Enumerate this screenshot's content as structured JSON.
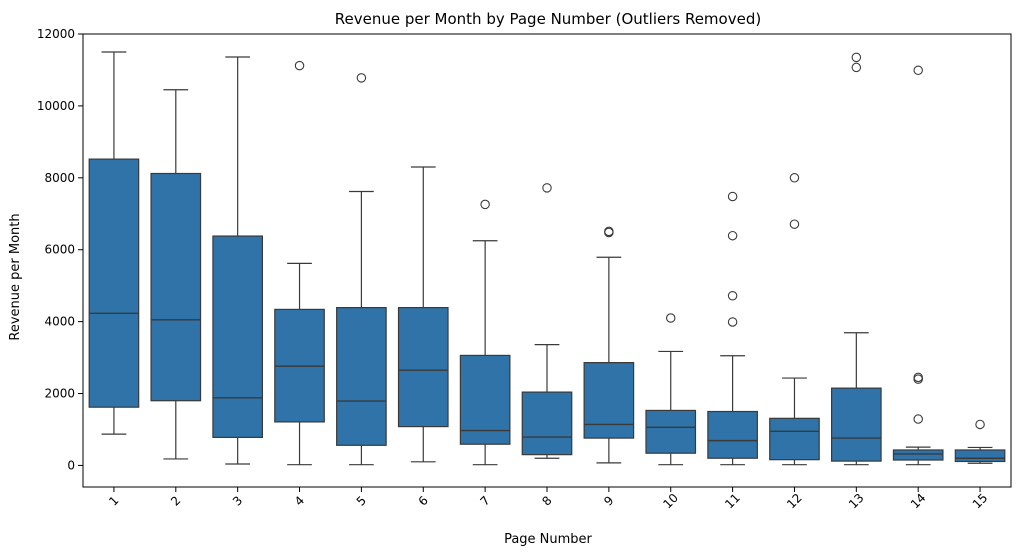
{
  "chart_data": {
    "type": "box",
    "title": "Revenue per Month by Page Number (Outliers Removed)",
    "xlabel": "Page Number",
    "ylabel": "Revenue per Month",
    "ylim": [
      -600,
      12000
    ],
    "yticks": [
      0,
      2000,
      4000,
      6000,
      8000,
      10000,
      12000
    ],
    "color": "#2f73a8",
    "grid": false,
    "categories": [
      "1",
      "2",
      "3",
      "4",
      "5",
      "6",
      "7",
      "8",
      "9",
      "10",
      "11",
      "12",
      "13",
      "14",
      "15"
    ],
    "boxes": [
      {
        "whisker_low": 870,
        "q1": 1620,
        "median": 4230,
        "q3": 8520,
        "whisker_high": 11500,
        "outliers": []
      },
      {
        "whisker_low": 180,
        "q1": 1800,
        "median": 4050,
        "q3": 8120,
        "whisker_high": 10450,
        "outliers": []
      },
      {
        "whisker_low": 40,
        "q1": 780,
        "median": 1880,
        "q3": 6380,
        "whisker_high": 11360,
        "outliers": []
      },
      {
        "whisker_low": 20,
        "q1": 1210,
        "median": 2760,
        "q3": 4340,
        "whisker_high": 5620,
        "outliers": [
          11120
        ]
      },
      {
        "whisker_low": 20,
        "q1": 560,
        "median": 1790,
        "q3": 4390,
        "whisker_high": 7620,
        "outliers": [
          10780
        ]
      },
      {
        "whisker_low": 100,
        "q1": 1080,
        "median": 2650,
        "q3": 4390,
        "whisker_high": 8300,
        "outliers": []
      },
      {
        "whisker_low": 20,
        "q1": 590,
        "median": 970,
        "q3": 3060,
        "whisker_high": 6250,
        "outliers": [
          7260
        ]
      },
      {
        "whisker_low": 200,
        "q1": 300,
        "median": 790,
        "q3": 2040,
        "whisker_high": 3360,
        "outliers": [
          7720
        ]
      },
      {
        "whisker_low": 70,
        "q1": 760,
        "median": 1140,
        "q3": 2860,
        "whisker_high": 5790,
        "outliers": [
          6480,
          6510
        ]
      },
      {
        "whisker_low": 20,
        "q1": 340,
        "median": 1060,
        "q3": 1530,
        "whisker_high": 3170,
        "outliers": [
          4100
        ]
      },
      {
        "whisker_low": 20,
        "q1": 200,
        "median": 690,
        "q3": 1500,
        "whisker_high": 3050,
        "outliers": [
          7480,
          6390,
          4720,
          3990
        ]
      },
      {
        "whisker_low": 20,
        "q1": 160,
        "median": 950,
        "q3": 1310,
        "whisker_high": 2430,
        "outliers": [
          8000,
          6710
        ]
      },
      {
        "whisker_low": 20,
        "q1": 120,
        "median": 760,
        "q3": 2150,
        "whisker_high": 3690,
        "outliers": [
          11350,
          11070
        ]
      },
      {
        "whisker_low": 20,
        "q1": 150,
        "median": 320,
        "q3": 430,
        "whisker_high": 510,
        "outliers": [
          10990,
          2450,
          2400,
          1290
        ]
      },
      {
        "whisker_low": 60,
        "q1": 110,
        "median": 200,
        "q3": 430,
        "whisker_high": 500,
        "outliers": [
          1140
        ]
      }
    ]
  }
}
